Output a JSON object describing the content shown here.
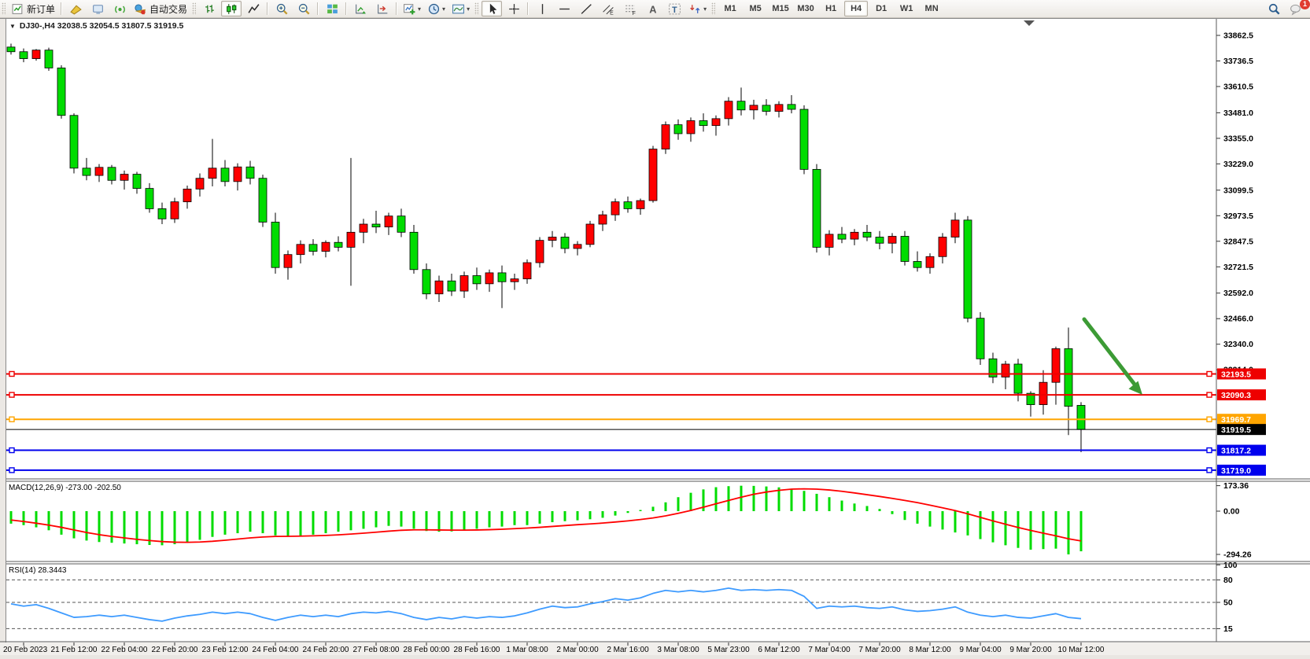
{
  "toolbar": {
    "groups": [
      {
        "grip": true,
        "items": [
          {
            "name": "new-order-button",
            "icon": "new-order",
            "label": "新订单"
          }
        ]
      },
      {
        "sep": true,
        "items": [
          {
            "name": "history-center-button",
            "icon": "wedge"
          },
          {
            "name": "terminal-button",
            "icon": "pc"
          },
          {
            "name": "signals-button",
            "icon": "signal"
          },
          {
            "name": "auto-trading-button",
            "icon": "autotrade",
            "label": "自动交易"
          }
        ]
      },
      {
        "grip": true,
        "items": [
          {
            "name": "bar-chart-button",
            "icon": "bars"
          },
          {
            "name": "candlestick-chart-button",
            "icon": "candles",
            "active": true
          },
          {
            "name": "line-chart-button",
            "icon": "linechart"
          }
        ]
      },
      {
        "sep": true,
        "items": [
          {
            "name": "zoom-in-button",
            "icon": "zoomin"
          },
          {
            "name": "zoom-out-button",
            "icon": "zoomout"
          }
        ]
      },
      {
        "sep": true,
        "items": [
          {
            "name": "tile-windows-button",
            "icon": "tile"
          }
        ]
      },
      {
        "sep": true,
        "items": [
          {
            "name": "auto-scroll-button",
            "icon": "autoscroll"
          },
          {
            "name": "chart-shift-button",
            "icon": "shiftend"
          }
        ]
      },
      {
        "sep": true,
        "items": [
          {
            "name": "indicators-button",
            "icon": "indicators",
            "dropdown": true
          },
          {
            "name": "periods-button",
            "icon": "periods",
            "dropdown": true
          },
          {
            "name": "templates-button",
            "icon": "template",
            "dropdown": true
          }
        ]
      },
      {
        "grip": true,
        "items": [
          {
            "name": "cursor-button",
            "icon": "cursor",
            "active": true
          },
          {
            "name": "crosshair-button",
            "icon": "crosshair"
          }
        ]
      },
      {
        "sep": true,
        "items": [
          {
            "name": "vertical-line-button",
            "icon": "vline"
          },
          {
            "name": "horizontal-line-button",
            "icon": "hline"
          },
          {
            "name": "trendline-button",
            "icon": "trendline"
          },
          {
            "name": "equidistant-channel-button",
            "icon": "channel"
          },
          {
            "name": "fibonacci-button",
            "icon": "fibo"
          },
          {
            "name": "text-button",
            "icon": "text"
          },
          {
            "name": "text-label-button",
            "icon": "label"
          },
          {
            "name": "arrows-button",
            "icon": "arrows",
            "dropdown": true
          }
        ]
      },
      {
        "grip": true,
        "timeframes": true
      }
    ],
    "timeframes": [
      "M1",
      "M5",
      "M15",
      "M30",
      "H1",
      "H4",
      "D1",
      "W1",
      "MN"
    ],
    "active_timeframe": "H4",
    "right_icons": [
      {
        "name": "search-button",
        "icon": "magnifier"
      },
      {
        "name": "notifications-button",
        "icon": "chat",
        "badge": "1"
      }
    ]
  },
  "chart": {
    "title": "DJ30-,H4  32038.5 32054.5 31807.5 31919.5",
    "symbol": "DJ30-",
    "period": "H4",
    "open": "32038.5",
    "high": "32054.5",
    "low": "31807.5",
    "close": "31919.5"
  },
  "price_axis": {
    "ticks": [
      33862.5,
      33736.5,
      33610.5,
      33481.0,
      33355.0,
      33229.0,
      33099.5,
      32973.5,
      32847.5,
      32721.5,
      32592.0,
      32466.0,
      32340.0,
      32214.0
    ]
  },
  "hlines": [
    {
      "label": "32193.5",
      "price": 32193.5,
      "color": "#EE0000",
      "text_color": "#ffffff",
      "type": "resistance-line"
    },
    {
      "label": "32090.3",
      "price": 32090.3,
      "color": "#EE0000",
      "text_color": "#ffffff",
      "type": "resistance-line"
    },
    {
      "label": "31969.7",
      "price": 31969.7,
      "color": "#FFA500",
      "text_color": "#ffffff",
      "type": "pivot-line"
    },
    {
      "label": "31919.5",
      "price": 31919.5,
      "color": "#000000",
      "text_color": "#ffffff",
      "type": "bid-price-line",
      "is_price": true
    },
    {
      "label": "31817.2",
      "price": 31817.2,
      "color": "#0000EE",
      "text_color": "#ffffff",
      "type": "support-line"
    },
    {
      "label": "31719.0",
      "price": 31719.0,
      "color": "#0000EE",
      "text_color": "#ffffff",
      "type": "support-line"
    }
  ],
  "chart_data": {
    "type": "candlestick",
    "symbol": "DJ30-",
    "timeframe": "H4",
    "up_color": "#FF0000",
    "down_color": "#00DC00",
    "visible_price_range": [
      31700,
      33945
    ],
    "candles_ohlc": [
      [
        33805,
        33822,
        33768,
        33782
      ],
      [
        33782,
        33798,
        33730,
        33748
      ],
      [
        33748,
        33795,
        33738,
        33790
      ],
      [
        33790,
        33802,
        33688,
        33702
      ],
      [
        33702,
        33715,
        33452,
        33468
      ],
      [
        33468,
        33478,
        33182,
        33208
      ],
      [
        33208,
        33258,
        33148,
        33172
      ],
      [
        33172,
        33228,
        33140,
        33212
      ],
      [
        33212,
        33224,
        33128,
        33148
      ],
      [
        33148,
        33196,
        33102,
        33178
      ],
      [
        33178,
        33190,
        33082,
        33108
      ],
      [
        33108,
        33134,
        32988,
        33008
      ],
      [
        33008,
        33038,
        32932,
        32958
      ],
      [
        32958,
        33062,
        32938,
        33042
      ],
      [
        33042,
        33122,
        33008,
        33105
      ],
      [
        33105,
        33182,
        33068,
        33158
      ],
      [
        33158,
        33352,
        33118,
        33208
      ],
      [
        33208,
        33248,
        33118,
        33142
      ],
      [
        33142,
        33232,
        33098,
        33214
      ],
      [
        33214,
        33244,
        33128,
        33158
      ],
      [
        33158,
        33176,
        32918,
        32942
      ],
      [
        32942,
        32988,
        32688,
        32718
      ],
      [
        32718,
        32802,
        32658,
        32782
      ],
      [
        32782,
        32852,
        32738,
        32832
      ],
      [
        32832,
        32858,
        32778,
        32798
      ],
      [
        32798,
        32852,
        32768,
        32842
      ],
      [
        32842,
        32872,
        32798,
        32818
      ],
      [
        32818,
        33258,
        32628,
        32892
      ],
      [
        32892,
        32958,
        32838,
        32932
      ],
      [
        32932,
        32998,
        32888,
        32918
      ],
      [
        32918,
        32988,
        32878,
        32972
      ],
      [
        32972,
        33008,
        32868,
        32892
      ],
      [
        32892,
        32928,
        32688,
        32708
      ],
      [
        32708,
        32738,
        32562,
        32588
      ],
      [
        32588,
        32678,
        32548,
        32652
      ],
      [
        32652,
        32688,
        32578,
        32602
      ],
      [
        32602,
        32698,
        32568,
        32678
      ],
      [
        32678,
        32718,
        32608,
        32638
      ],
      [
        32638,
        32708,
        32598,
        32692
      ],
      [
        32692,
        32728,
        32518,
        32648
      ],
      [
        32648,
        32688,
        32608,
        32662
      ],
      [
        32662,
        32758,
        32638,
        32742
      ],
      [
        32742,
        32868,
        32718,
        32852
      ],
      [
        32852,
        32898,
        32818,
        32868
      ],
      [
        32868,
        32888,
        32788,
        32812
      ],
      [
        32812,
        32848,
        32778,
        32832
      ],
      [
        32832,
        32948,
        32818,
        32932
      ],
      [
        32932,
        32998,
        32898,
        32978
      ],
      [
        32978,
        33058,
        32948,
        33042
      ],
      [
        33042,
        33068,
        32988,
        33008
      ],
      [
        33008,
        33058,
        32978,
        33048
      ],
      [
        33048,
        33318,
        33038,
        33302
      ],
      [
        33302,
        33438,
        33278,
        33422
      ],
      [
        33422,
        33448,
        33348,
        33378
      ],
      [
        33378,
        33458,
        33338,
        33442
      ],
      [
        33442,
        33478,
        33388,
        33418
      ],
      [
        33418,
        33468,
        33368,
        33452
      ],
      [
        33452,
        33558,
        33418,
        33538
      ],
      [
        33538,
        33605,
        33468,
        33495
      ],
      [
        33495,
        33545,
        33448,
        33518
      ],
      [
        33518,
        33548,
        33468,
        33488
      ],
      [
        33488,
        33538,
        33458,
        33522
      ],
      [
        33522,
        33568,
        33478,
        33498
      ],
      [
        33498,
        33518,
        33178,
        33202
      ],
      [
        33202,
        33228,
        32792,
        32818
      ],
      [
        32818,
        32902,
        32778,
        32882
      ],
      [
        32882,
        32918,
        32838,
        32858
      ],
      [
        32858,
        32908,
        32828,
        32892
      ],
      [
        32892,
        32928,
        32848,
        32868
      ],
      [
        32868,
        32898,
        32808,
        32838
      ],
      [
        32838,
        32888,
        32788,
        32872
      ],
      [
        32872,
        32898,
        32728,
        32748
      ],
      [
        32748,
        32798,
        32698,
        32718
      ],
      [
        32718,
        32788,
        32688,
        32772
      ],
      [
        32772,
        32888,
        32738,
        32868
      ],
      [
        32868,
        32988,
        32838,
        32952
      ],
      [
        32952,
        32972,
        32448,
        32468
      ],
      [
        32468,
        32498,
        32238,
        32268
      ],
      [
        32268,
        32298,
        32148,
        32178
      ],
      [
        32178,
        32258,
        32118,
        32242
      ],
      [
        32242,
        32268,
        32058,
        32098
      ],
      [
        32098,
        32108,
        31983,
        32042
      ],
      [
        32042,
        32212,
        31993,
        32152
      ],
      [
        32152,
        32328,
        32042,
        32318
      ],
      [
        32318,
        32422,
        31892,
        32034
      ],
      [
        32038.5,
        32054.5,
        31807.5,
        31919.5
      ]
    ]
  },
  "macd": {
    "label": "MACD(12,26,9) -273.00 -202.50",
    "params": "12,26,9",
    "value_main": "-273.00",
    "value_signal": "-202.50",
    "axis_labels": [
      "173.36",
      "0.00",
      "-294.26"
    ],
    "axis_values": [
      173.36,
      0,
      -294.26
    ],
    "hist_color": "#00DC00",
    "signal_color": "#FF0000",
    "histogram": [
      -85,
      -95,
      -110,
      -130,
      -160,
      -185,
      -200,
      -210,
      -215,
      -220,
      -225,
      -230,
      -232,
      -225,
      -210,
      -195,
      -175,
      -160,
      -150,
      -140,
      -150,
      -165,
      -175,
      -170,
      -160,
      -150,
      -140,
      -130,
      -120,
      -110,
      -100,
      -105,
      -120,
      -135,
      -140,
      -138,
      -130,
      -120,
      -110,
      -105,
      -95,
      -95,
      -85,
      -75,
      -68,
      -62,
      -55,
      -45,
      -30,
      -12,
      8,
      30,
      60,
      95,
      125,
      148,
      163,
      170,
      173,
      172,
      168,
      162,
      152,
      138,
      118,
      95,
      72,
      52,
      35,
      15,
      -20,
      -60,
      -85,
      -105,
      -125,
      -145,
      -165,
      -190,
      -212,
      -232,
      -250,
      -262,
      -258,
      -255,
      -294,
      -273
    ],
    "signal": [
      -60,
      -70,
      -82,
      -95,
      -110,
      -128,
      -145,
      -160,
      -172,
      -182,
      -192,
      -200,
      -207,
      -211,
      -212,
      -210,
      -205,
      -198,
      -190,
      -182,
      -176,
      -172,
      -171,
      -170,
      -168,
      -165,
      -161,
      -156,
      -150,
      -143,
      -136,
      -130,
      -127,
      -127,
      -128,
      -129,
      -129,
      -128,
      -126,
      -123,
      -119,
      -115,
      -110,
      -104,
      -98,
      -92,
      -87,
      -81,
      -74,
      -66,
      -57,
      -46,
      -32,
      -15,
      5,
      27,
      50,
      73,
      95,
      115,
      130,
      142,
      150,
      152,
      150,
      144,
      135,
      124,
      112,
      100,
      87,
      73,
      58,
      41,
      23,
      4,
      -18,
      -42,
      -66,
      -89,
      -111,
      -131,
      -150,
      -168,
      -188,
      -202.5
    ]
  },
  "rsi": {
    "label": "RSI(14) 28.3443",
    "period": "14",
    "value": "28.3443",
    "axis_labels": [
      "100",
      "80",
      "50",
      "15"
    ],
    "axis_values": [
      100,
      80,
      50,
      15
    ],
    "dashed_levels": [
      80,
      50,
      15
    ],
    "color": "#3E9BFF",
    "values": [
      48,
      45,
      47,
      42,
      36,
      30,
      31,
      33,
      31,
      33,
      30,
      27,
      25,
      29,
      32,
      34,
      37,
      35,
      37,
      35,
      30,
      26,
      30,
      33,
      31,
      33,
      31,
      35,
      37,
      36,
      38,
      35,
      30,
      27,
      30,
      28,
      31,
      29,
      31,
      30,
      32,
      36,
      41,
      45,
      43,
      44,
      48,
      51,
      55,
      53,
      56,
      62,
      66,
      64,
      66,
      64,
      66,
      69,
      66,
      67,
      66,
      67,
      66,
      58,
      42,
      45,
      44,
      45,
      43,
      42,
      44,
      40,
      38,
      39,
      41,
      44,
      37,
      33,
      31,
      33,
      30,
      29,
      32,
      35,
      30,
      28.34
    ]
  },
  "time_axis": {
    "labels": [
      "20 Feb 2023",
      "21 Feb 12:00",
      "22 Feb 04:00",
      "22 Feb 20:00",
      "23 Feb 12:00",
      "24 Feb 04:00",
      "24 Feb 20:00",
      "27 Feb 08:00",
      "28 Feb 00:00",
      "28 Feb 16:00",
      "1 Mar 08:00",
      "2 Mar 00:00",
      "2 Mar 16:00",
      "3 Mar 08:00",
      "5 Mar 23:00",
      "6 Mar 12:00",
      "7 Mar 04:00",
      "7 Mar 20:00",
      "8 Mar 12:00",
      "9 Mar 04:00",
      "9 Mar 20:00",
      "10 Mar 12:00"
    ]
  },
  "annotations": {
    "arrow": {
      "name": "sell-direction-arrow",
      "color": "#3C9B35",
      "direction": "down-right"
    }
  }
}
